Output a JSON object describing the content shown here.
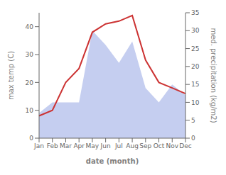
{
  "chart_data": {
    "type": "line",
    "categories": [
      "Jan",
      "Feb",
      "Mar",
      "Apr",
      "May",
      "Jun",
      "Jul",
      "Aug",
      "Sep",
      "Oct",
      "Nov",
      "Dec"
    ],
    "series": [
      {
        "type": "area",
        "axis": "y2",
        "color": "#c5cef0",
        "values": [
          7,
          10,
          10,
          10,
          30,
          26,
          21,
          27,
          14,
          10,
          15,
          12
        ]
      },
      {
        "type": "line",
        "color": "#cc3333",
        "values": [
          8,
          10,
          20,
          25,
          38,
          41,
          42,
          44,
          28,
          20,
          18,
          16
        ]
      }
    ],
    "xlabel": "date (month)",
    "ylabel": "max temp (C)",
    "y2label": "med. precipitation (kg/m2)",
    "ylim": [
      0,
      45
    ],
    "yticks": [
      0,
      10,
      20,
      30,
      40
    ],
    "y2lim": [
      0,
      35
    ],
    "y2ticks": [
      0,
      5,
      10,
      15,
      20,
      25,
      30,
      35
    ],
    "grid": false
  }
}
